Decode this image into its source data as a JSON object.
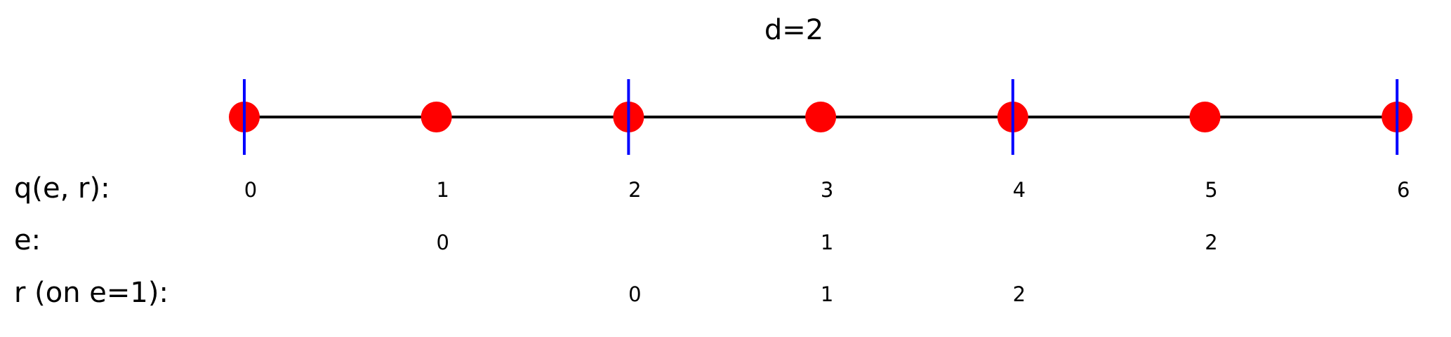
{
  "title": "d=2",
  "colors": {
    "line": "#000000",
    "point": "#ff0000",
    "marker": "#0000ff"
  },
  "points": [
    "0",
    "1",
    "2",
    "3",
    "4",
    "5",
    "6"
  ],
  "marked_points": [
    0,
    2,
    4,
    6
  ],
  "rows": [
    {
      "label": "q(e, r):",
      "values": [
        {
          "at": 0,
          "text": "0"
        },
        {
          "at": 1,
          "text": "1"
        },
        {
          "at": 2,
          "text": "2"
        },
        {
          "at": 3,
          "text": "3"
        },
        {
          "at": 4,
          "text": "4"
        },
        {
          "at": 5,
          "text": "5"
        },
        {
          "at": 6,
          "text": "6"
        }
      ]
    },
    {
      "label": "e:",
      "values": [
        {
          "at": 1,
          "text": "0"
        },
        {
          "at": 3,
          "text": "1"
        },
        {
          "at": 5,
          "text": "2"
        }
      ]
    },
    {
      "label": "r (on e=1):",
      "values": [
        {
          "at": 2,
          "text": "0"
        },
        {
          "at": 3,
          "text": "1"
        },
        {
          "at": 4,
          "text": "2"
        }
      ]
    }
  ]
}
